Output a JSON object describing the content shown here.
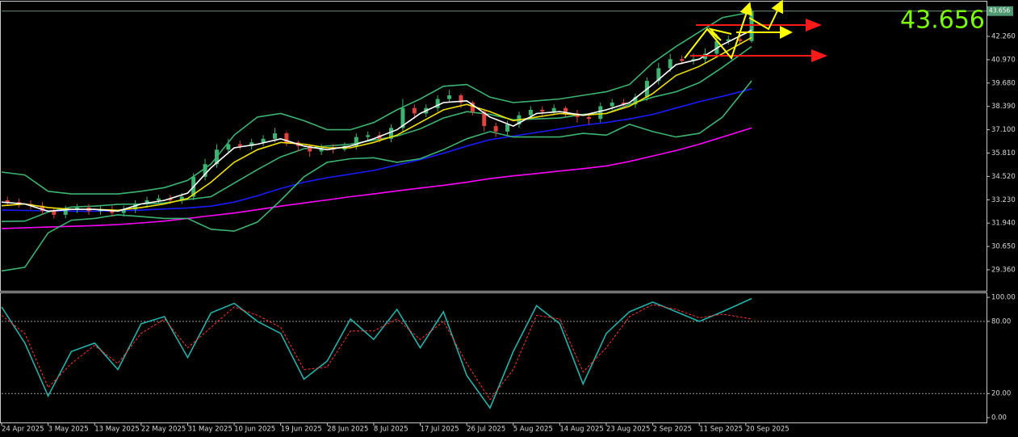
{
  "chart_data": [
    {
      "type": "candlestick",
      "last_price": 43.656,
      "xlim": [
        0,
        169.4
      ],
      "ylim": [
        28.2,
        44.18
      ],
      "yticks": [
        {
          "value": 29.36,
          "label": "29.360"
        },
        {
          "value": 30.65,
          "label": "30.650"
        },
        {
          "value": 31.94,
          "label": "31.940"
        },
        {
          "value": 33.23,
          "label": "33.230"
        },
        {
          "value": 34.52,
          "label": "34.520"
        },
        {
          "value": 35.81,
          "label": "35.810"
        },
        {
          "value": 37.1,
          "label": "37.100"
        },
        {
          "value": 38.39,
          "label": "38.390"
        },
        {
          "value": 39.68,
          "label": "39.680"
        },
        {
          "value": 40.97,
          "label": "40.970"
        },
        {
          "value": 42.26,
          "label": "42.260"
        }
      ],
      "candles": {
        "up_color": "#3cb371",
        "down_color": "#e0443c",
        "x": [
          1,
          3,
          5,
          7,
          9,
          11,
          13,
          15,
          17,
          19,
          21,
          23,
          25,
          27,
          29,
          31,
          33,
          35,
          37,
          39,
          41,
          43,
          45,
          47,
          49,
          51,
          53,
          55,
          57,
          59,
          61,
          63,
          65,
          67,
          69,
          71,
          73,
          75,
          77,
          79,
          81,
          83,
          85,
          87,
          89,
          91,
          93,
          95,
          97,
          99,
          101,
          103,
          105,
          107,
          109,
          111,
          113,
          115,
          117,
          119,
          121,
          123,
          125,
          127,
          129
        ],
        "open": [
          33.2,
          33.1,
          33.0,
          32.9,
          32.6,
          32.4,
          32.7,
          32.8,
          32.6,
          32.7,
          32.5,
          32.7,
          33.0,
          33.2,
          33.3,
          33.2,
          33.4,
          34.5,
          35.2,
          36.0,
          36.3,
          36.2,
          36.4,
          36.6,
          36.9,
          36.4,
          36.2,
          35.9,
          36.1,
          36.0,
          36.2,
          36.7,
          36.8,
          36.6,
          37.2,
          38.3,
          38.0,
          38.3,
          38.8,
          39.0,
          38.6,
          38.1,
          37.3,
          37.0,
          37.4,
          37.9,
          38.2,
          38.1,
          38.3,
          38.0,
          37.8,
          37.7,
          38.4,
          38.6,
          38.5,
          38.9,
          39.8,
          40.5,
          41.0,
          40.9,
          41.0,
          41.3,
          42.0,
          42.1,
          42.0
        ],
        "high": [
          33.4,
          33.3,
          33.2,
          33.1,
          32.8,
          32.9,
          33.0,
          33.0,
          32.9,
          32.9,
          32.9,
          33.2,
          33.4,
          33.5,
          33.5,
          33.6,
          34.7,
          35.5,
          36.3,
          36.6,
          36.5,
          36.6,
          36.8,
          37.2,
          37.0,
          36.5,
          36.3,
          36.3,
          36.3,
          36.4,
          36.9,
          37.0,
          37.0,
          37.4,
          38.8,
          38.5,
          38.5,
          39.0,
          39.3,
          39.1,
          38.7,
          38.2,
          37.5,
          37.6,
          38.1,
          38.4,
          38.4,
          38.5,
          38.4,
          38.2,
          38.0,
          38.6,
          38.8,
          38.8,
          39.1,
          40.0,
          40.8,
          41.3,
          41.2,
          41.3,
          41.6,
          42.4,
          42.3,
          42.3,
          43.8
        ],
        "low": [
          32.9,
          32.8,
          32.7,
          32.4,
          32.2,
          32.2,
          32.5,
          32.4,
          32.4,
          32.3,
          32.3,
          32.5,
          32.8,
          33.0,
          33.0,
          33.0,
          33.2,
          34.3,
          35.0,
          35.8,
          36.0,
          36.0,
          36.2,
          36.4,
          36.2,
          35.9,
          35.6,
          35.7,
          35.8,
          35.9,
          36.0,
          36.5,
          36.4,
          36.4,
          37.0,
          37.7,
          37.8,
          38.1,
          38.6,
          38.3,
          37.9,
          37.0,
          36.7,
          36.8,
          37.2,
          37.7,
          37.9,
          37.9,
          37.8,
          37.5,
          37.4,
          37.5,
          38.2,
          38.3,
          38.3,
          38.7,
          39.6,
          40.3,
          40.7,
          40.7,
          40.8,
          41.1,
          41.8,
          41.8,
          41.9
        ],
        "close": [
          33.1,
          33.0,
          32.9,
          32.6,
          32.4,
          32.7,
          32.8,
          32.6,
          32.7,
          32.5,
          32.7,
          33.0,
          33.2,
          33.3,
          33.2,
          33.4,
          34.5,
          35.2,
          36.0,
          36.3,
          36.2,
          36.4,
          36.6,
          36.9,
          36.4,
          36.2,
          35.9,
          36.1,
          36.0,
          36.2,
          36.7,
          36.8,
          36.6,
          37.2,
          38.3,
          38.0,
          38.3,
          38.8,
          39.0,
          38.6,
          38.1,
          37.3,
          37.0,
          37.4,
          37.9,
          38.2,
          38.1,
          38.3,
          38.0,
          37.8,
          37.7,
          38.4,
          38.6,
          38.5,
          38.9,
          39.8,
          40.5,
          41.0,
          40.9,
          41.0,
          41.3,
          42.0,
          42.1,
          42.0,
          43.656
        ]
      },
      "x": [
        0,
        4,
        8,
        12,
        16,
        20,
        24,
        28,
        32,
        36,
        40,
        44,
        48,
        52,
        56,
        60,
        64,
        68,
        72,
        76,
        80,
        84,
        88,
        92,
        96,
        100,
        104,
        108,
        112,
        116,
        120,
        124,
        129
      ],
      "series": [
        {
          "color": "#ff00ff",
          "values": [
            31.64,
            31.68,
            31.72,
            31.76,
            31.8,
            31.86,
            31.95,
            32.05,
            32.2,
            32.35,
            32.5,
            32.68,
            32.88,
            33.05,
            33.22,
            33.4,
            33.55,
            33.72,
            33.88,
            34.03,
            34.2,
            34.4,
            34.55,
            34.68,
            34.82,
            34.95,
            35.1,
            35.35,
            35.65,
            35.95,
            36.3,
            36.7,
            37.2
          ]
        },
        {
          "color": "#1a1aff",
          "values": [
            32.66,
            32.64,
            32.62,
            32.6,
            32.6,
            32.62,
            32.66,
            32.72,
            32.78,
            32.88,
            33.1,
            33.45,
            33.85,
            34.2,
            34.45,
            34.65,
            34.85,
            35.15,
            35.45,
            35.8,
            36.2,
            36.55,
            36.75,
            36.95,
            37.15,
            37.35,
            37.5,
            37.7,
            37.95,
            38.3,
            38.65,
            38.95,
            39.36
          ]
        },
        {
          "color": "#3cb371",
          "values": [
            34.76,
            34.6,
            33.7,
            33.55,
            33.55,
            33.55,
            33.7,
            33.9,
            34.3,
            35.2,
            36.8,
            37.8,
            38.0,
            37.6,
            37.1,
            37.1,
            37.5,
            38.2,
            38.8,
            39.5,
            39.6,
            38.9,
            38.6,
            38.7,
            38.8,
            39.0,
            39.2,
            39.6,
            40.8,
            41.7,
            42.5,
            43.3,
            43.6
          ]
        },
        {
          "color": "#3cb371",
          "values": [
            29.3,
            29.5,
            31.4,
            32.1,
            32.2,
            32.4,
            32.3,
            32.2,
            32.2,
            31.6,
            31.5,
            32.0,
            33.2,
            34.5,
            35.3,
            35.5,
            35.55,
            35.3,
            35.5,
            36.0,
            36.6,
            37.0,
            36.7,
            36.7,
            36.7,
            36.9,
            36.8,
            37.4,
            37.0,
            36.7,
            36.9,
            37.8,
            39.8
          ]
        },
        {
          "color": "#3cb371",
          "values": [
            32.03,
            32.05,
            32.55,
            32.83,
            32.88,
            32.98,
            33.0,
            33.05,
            33.25,
            33.4,
            34.15,
            34.9,
            35.6,
            36.05,
            36.2,
            36.3,
            36.53,
            36.75,
            37.15,
            37.75,
            38.1,
            37.95,
            37.65,
            37.7,
            37.75,
            37.95,
            38.0,
            38.5,
            38.9,
            39.2,
            39.7,
            40.55,
            41.7
          ]
        },
        {
          "color": "#f0e000",
          "values": [
            32.9,
            33.0,
            32.8,
            32.7,
            32.7,
            32.65,
            32.8,
            33.0,
            33.3,
            34.2,
            35.3,
            36.0,
            36.4,
            36.3,
            36.1,
            36.1,
            36.4,
            36.8,
            37.5,
            38.2,
            38.5,
            38.1,
            37.6,
            37.8,
            38.0,
            37.9,
            38.0,
            38.4,
            39.1,
            40.1,
            40.6,
            41.3,
            42.2
          ]
        },
        {
          "color": "#ffffff",
          "values": [
            33.1,
            33.0,
            32.6,
            32.7,
            32.7,
            32.6,
            33.0,
            33.2,
            33.6,
            35.0,
            36.1,
            36.3,
            36.6,
            36.2,
            36.0,
            36.2,
            36.6,
            37.1,
            38.0,
            38.6,
            38.7,
            37.8,
            37.3,
            38.0,
            38.1,
            37.9,
            38.2,
            38.6,
            39.6,
            40.7,
            41.0,
            41.8,
            42.6
          ]
        }
      ]
    },
    {
      "type": "line",
      "xlim": [
        0,
        169.4
      ],
      "xticks": [
        {
          "value": 0,
          "label": "24 Apr 2025"
        },
        {
          "value": 8,
          "label": "3 May 2025"
        },
        {
          "value": 16,
          "label": "13 May 2025"
        },
        {
          "value": 24,
          "label": "22 May 2025"
        },
        {
          "value": 32,
          "label": "31 May 2025"
        },
        {
          "value": 40,
          "label": "10 Jun 2025"
        },
        {
          "value": 48,
          "label": "19 Jun 2025"
        },
        {
          "value": 56,
          "label": "28 Jun 2025"
        },
        {
          "value": 64,
          "label": "8 Jul 2025"
        },
        {
          "value": 72,
          "label": "17 Jul 2025"
        },
        {
          "value": 80,
          "label": "26 Jul 2025"
        },
        {
          "value": 88,
          "label": "5 Aug 2025"
        },
        {
          "value": 96,
          "label": "14 Aug 2025"
        },
        {
          "value": 104,
          "label": "23 Aug 2025"
        },
        {
          "value": 112,
          "label": "2 Sep 2025"
        },
        {
          "value": 120,
          "label": "11 Sep 2025"
        },
        {
          "value": 128,
          "label": "20 Sep 2025"
        }
      ],
      "ylim": [
        -4,
        103.4
      ],
      "yticks": [
        {
          "value": 0,
          "label": "0.00"
        },
        {
          "value": 20,
          "label": "20.00"
        },
        {
          "value": 80,
          "label": "80.00"
        },
        {
          "value": 100,
          "label": "100.00"
        }
      ],
      "levels": [
        20,
        80
      ],
      "x": [
        0,
        4,
        8,
        12,
        16,
        20,
        24,
        28,
        32,
        36,
        40,
        44,
        48,
        52,
        56,
        60,
        64,
        68,
        72,
        76,
        80,
        84,
        88,
        92,
        96,
        100,
        104,
        108,
        112,
        116,
        120,
        124,
        129
      ],
      "series": [
        {
          "color": "#20b2aa",
          "dashed": false,
          "values": [
            92,
            62,
            18,
            55,
            62,
            40,
            78,
            84,
            50,
            87,
            95,
            80,
            70,
            32,
            47,
            82,
            65,
            90,
            58,
            88,
            35,
            8,
            55,
            93,
            78,
            28,
            70,
            88,
            96,
            88,
            80,
            88,
            99
          ]
        },
        {
          "color": "#ff3030",
          "dashed": true,
          "values": [
            85,
            70,
            25,
            45,
            60,
            45,
            70,
            82,
            58,
            75,
            92,
            85,
            75,
            40,
            42,
            72,
            72,
            82,
            65,
            80,
            45,
            15,
            40,
            85,
            82,
            38,
            58,
            84,
            94,
            90,
            83,
            86,
            82
          ]
        }
      ]
    }
  ]
}
